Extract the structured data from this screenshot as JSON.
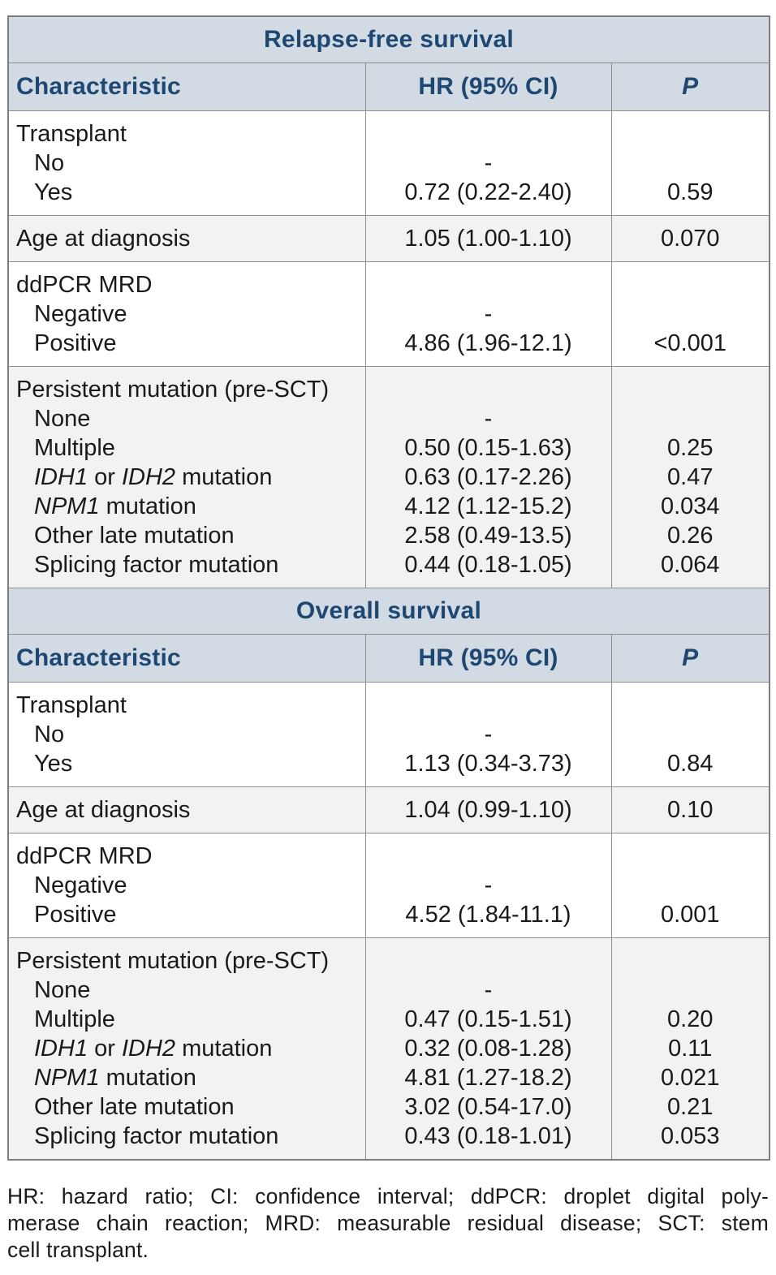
{
  "colors": {
    "header_bg": "#d2dbe4",
    "navy": "#1e4872",
    "stripe": "#f2f2f2",
    "border_inner": "#8f8f8f",
    "border_outer": "#7e7e7e",
    "text": "#1a1a1a"
  },
  "tables": [
    {
      "title": "Relapse-free survival",
      "columns": [
        "Characteristic",
        "HR (95% CI)",
        "P"
      ],
      "groups": [
        {
          "shaded": false,
          "lines": [
            {
              "label": [
                {
                  "t": "Transplant"
                }
              ],
              "indent": 0,
              "hr": "",
              "p": ""
            },
            {
              "label": [
                {
                  "t": "No"
                }
              ],
              "indent": 1,
              "hr": "-",
              "p": ""
            },
            {
              "label": [
                {
                  "t": "Yes"
                }
              ],
              "indent": 1,
              "hr": "0.72 (0.22-2.40)",
              "p": "0.59"
            }
          ]
        },
        {
          "shaded": true,
          "lines": [
            {
              "label": [
                {
                  "t": "Age at diagnosis"
                }
              ],
              "indent": 0,
              "hr": "1.05 (1.00-1.10)",
              "p": "0.070"
            }
          ]
        },
        {
          "shaded": false,
          "lines": [
            {
              "label": [
                {
                  "t": "ddPCR MRD"
                }
              ],
              "indent": 0,
              "hr": "",
              "p": ""
            },
            {
              "label": [
                {
                  "t": "Negative"
                }
              ],
              "indent": 1,
              "hr": "-",
              "p": ""
            },
            {
              "label": [
                {
                  "t": "Positive"
                }
              ],
              "indent": 1,
              "hr": "4.86 (1.96-12.1)",
              "p": "<0.001"
            }
          ]
        },
        {
          "shaded": true,
          "lines": [
            {
              "label": [
                {
                  "t": "Persistent mutation (pre-SCT)"
                }
              ],
              "indent": 0,
              "hr": "",
              "p": ""
            },
            {
              "label": [
                {
                  "t": "None"
                }
              ],
              "indent": 1,
              "hr": "-",
              "p": ""
            },
            {
              "label": [
                {
                  "t": "Multiple"
                }
              ],
              "indent": 1,
              "hr": "0.50 (0.15-1.63)",
              "p": "0.25"
            },
            {
              "label": [
                {
                  "t": "IDH1",
                  "i": true
                },
                {
                  "t": " or "
                },
                {
                  "t": "IDH2",
                  "i": true
                },
                {
                  "t": " mutation"
                }
              ],
              "indent": 1,
              "hr": "0.63 (0.17-2.26)",
              "p": "0.47"
            },
            {
              "label": [
                {
                  "t": "NPM1",
                  "i": true
                },
                {
                  "t": " mutation"
                }
              ],
              "indent": 1,
              "hr": "4.12 (1.12-15.2)",
              "p": "0.034"
            },
            {
              "label": [
                {
                  "t": "Other late mutation"
                }
              ],
              "indent": 1,
              "hr": "2.58 (0.49-13.5)",
              "p": "0.26"
            },
            {
              "label": [
                {
                  "t": "Splicing factor mutation"
                }
              ],
              "indent": 1,
              "hr": "0.44 (0.18-1.05)",
              "p": "0.064"
            }
          ]
        }
      ]
    },
    {
      "title": "Overall survival",
      "columns": [
        "Characteristic",
        "HR (95% CI)",
        "P"
      ],
      "groups": [
        {
          "shaded": false,
          "lines": [
            {
              "label": [
                {
                  "t": "Transplant"
                }
              ],
              "indent": 0,
              "hr": "",
              "p": ""
            },
            {
              "label": [
                {
                  "t": "No"
                }
              ],
              "indent": 1,
              "hr": "-",
              "p": ""
            },
            {
              "label": [
                {
                  "t": "Yes"
                }
              ],
              "indent": 1,
              "hr": "1.13 (0.34-3.73)",
              "p": "0.84"
            }
          ]
        },
        {
          "shaded": true,
          "lines": [
            {
              "label": [
                {
                  "t": "Age at diagnosis"
                }
              ],
              "indent": 0,
              "hr": "1.04 (0.99-1.10)",
              "p": "0.10"
            }
          ]
        },
        {
          "shaded": false,
          "lines": [
            {
              "label": [
                {
                  "t": "ddPCR MRD"
                }
              ],
              "indent": 0,
              "hr": "",
              "p": ""
            },
            {
              "label": [
                {
                  "t": "Negative"
                }
              ],
              "indent": 1,
              "hr": "-",
              "p": ""
            },
            {
              "label": [
                {
                  "t": "Positive"
                }
              ],
              "indent": 1,
              "hr": "4.52 (1.84-11.1)",
              "p": "0.001"
            }
          ]
        },
        {
          "shaded": true,
          "lines": [
            {
              "label": [
                {
                  "t": "Persistent mutation (pre-SCT)"
                }
              ],
              "indent": 0,
              "hr": "",
              "p": ""
            },
            {
              "label": [
                {
                  "t": "None"
                }
              ],
              "indent": 1,
              "hr": "-",
              "p": ""
            },
            {
              "label": [
                {
                  "t": "Multiple"
                }
              ],
              "indent": 1,
              "hr": "0.47 (0.15-1.51)",
              "p": "0.20"
            },
            {
              "label": [
                {
                  "t": "IDH1",
                  "i": true
                },
                {
                  "t": " or "
                },
                {
                  "t": "IDH2",
                  "i": true
                },
                {
                  "t": " mutation"
                }
              ],
              "indent": 1,
              "hr": "0.32 (0.08-1.28)",
              "p": "0.11"
            },
            {
              "label": [
                {
                  "t": "NPM1",
                  "i": true
                },
                {
                  "t": " mutation"
                }
              ],
              "indent": 1,
              "hr": "4.81 (1.27-18.2)",
              "p": "0.021"
            },
            {
              "label": [
                {
                  "t": "Other late mutation"
                }
              ],
              "indent": 1,
              "hr": "3.02 (0.54-17.0)",
              "p": "0.21"
            },
            {
              "label": [
                {
                  "t": "Splicing factor mutation"
                }
              ],
              "indent": 1,
              "hr": "0.43 (0.18-1.01)",
              "p": "0.053"
            }
          ]
        }
      ]
    }
  ],
  "footnote": {
    "lines": [
      "HR: hazard ratio; CI: confidence interval; ddPCR: droplet digital poly-",
      "merase chain reaction; MRD: measurable residual disease; SCT: stem",
      "cell transplant."
    ]
  }
}
